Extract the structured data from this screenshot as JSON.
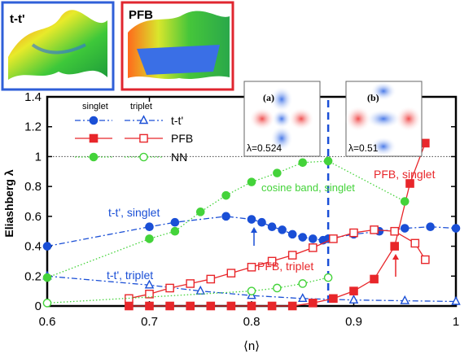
{
  "insets": {
    "ttp": {
      "label": "t-t'"
    },
    "pfb": {
      "label": "PFB"
    },
    "a": {
      "label": "(a)",
      "lambda_text": "λ=0.524"
    },
    "b": {
      "label": "(b)",
      "lambda_text": "λ=0.51"
    }
  },
  "legend": {
    "singlet_header": "singlet",
    "triplet_header": "triplet",
    "rows": [
      {
        "label": "t-t'",
        "series": [
          "ttp_singlet",
          "ttp_triplet"
        ]
      },
      {
        "label": "PFB",
        "series": [
          "pfb_singlet",
          "pfb_triplet"
        ]
      },
      {
        "label": "NN",
        "series": [
          "nn_singlet",
          "nn_triplet"
        ]
      }
    ]
  },
  "annotations": {
    "ttp_singlet": "t-t', singlet",
    "ttp_triplet": "t-t', triplet",
    "cosine_singlet": "cosine band, singlet",
    "pfb_singlet": "PFB, singlet",
    "pfb_triplet": "PFB, triplet"
  },
  "colors": {
    "blue": "#1a4fd6",
    "red": "#e8262a",
    "green": "#44d33a",
    "ttp_frame": "#2f5fd8",
    "pfb_frame": "#e0262f"
  },
  "chart_data": {
    "type": "line",
    "xlabel": "⟨n⟩",
    "ylabel": "Eliashberg λ",
    "xlim": [
      0.6,
      1.0
    ],
    "ylim": [
      0,
      1.4
    ],
    "xticks": [
      0.6,
      0.7,
      0.8,
      0.9,
      1.0
    ],
    "xtick_labels": [
      "0.6",
      "0.7",
      "0.8",
      "0.9",
      "1"
    ],
    "yticks": [
      0,
      0.2,
      0.4,
      0.6,
      0.8,
      1.0,
      1.2,
      1.4
    ],
    "ytick_labels": [
      "0",
      "0.2",
      "0.4",
      "0.6",
      "0.8",
      "1",
      "1.2",
      "1.4"
    ],
    "reference_line_y": 1.0,
    "vertical_marker_x": 0.875,
    "series": [
      {
        "id": "ttp_singlet",
        "color": "#1a4fd6",
        "marker": "circle",
        "filled": true,
        "dash": "dashdot",
        "x": [
          0.6,
          0.7,
          0.725,
          0.775,
          0.8,
          0.81,
          0.82,
          0.83,
          0.84,
          0.85,
          0.86,
          0.87,
          0.875,
          0.9,
          0.925,
          0.95,
          0.975,
          1.0
        ],
        "y": [
          0.4,
          0.53,
          0.56,
          0.6,
          0.58,
          0.56,
          0.53,
          0.51,
          0.48,
          0.46,
          0.45,
          0.44,
          0.45,
          0.48,
          0.5,
          0.52,
          0.53,
          0.52
        ]
      },
      {
        "id": "ttp_triplet",
        "color": "#1a4fd6",
        "marker": "triangle",
        "filled": false,
        "dash": "dashdot",
        "x": [
          0.6,
          0.7,
          0.75,
          0.8,
          0.85,
          0.9,
          0.95,
          1.0
        ],
        "y": [
          0.2,
          0.14,
          0.1,
          0.07,
          0.05,
          0.04,
          0.035,
          0.03
        ]
      },
      {
        "id": "pfb_singlet",
        "color": "#e8262a",
        "marker": "square",
        "filled": true,
        "dash": "solid",
        "x": [
          0.68,
          0.7,
          0.72,
          0.74,
          0.76,
          0.78,
          0.8,
          0.82,
          0.84,
          0.86,
          0.88,
          0.9,
          0.92,
          0.94,
          0.955,
          0.97
        ],
        "y": [
          0.0,
          0.0,
          0.0,
          0.0,
          0.0,
          0.0,
          0.0,
          0.0,
          0.0,
          0.02,
          0.05,
          0.1,
          0.18,
          0.4,
          0.82,
          1.09
        ]
      },
      {
        "id": "pfb_triplet",
        "color": "#e8262a",
        "marker": "square",
        "filled": false,
        "dash": "solid",
        "x": [
          0.68,
          0.7,
          0.72,
          0.74,
          0.76,
          0.78,
          0.8,
          0.82,
          0.84,
          0.86,
          0.88,
          0.9,
          0.92,
          0.94,
          0.96,
          0.97
        ],
        "y": [
          0.05,
          0.08,
          0.12,
          0.15,
          0.18,
          0.22,
          0.26,
          0.3,
          0.34,
          0.39,
          0.45,
          0.49,
          0.51,
          0.5,
          0.42,
          0.31
        ]
      },
      {
        "id": "nn_singlet",
        "color": "#44d33a",
        "marker": "circle",
        "filled": true,
        "dash": "dotted",
        "x": [
          0.6,
          0.7,
          0.725,
          0.75,
          0.775,
          0.8,
          0.825,
          0.85,
          0.875,
          0.95
        ],
        "y": [
          0.19,
          0.45,
          0.5,
          0.63,
          0.74,
          0.83,
          0.89,
          0.96,
          0.97,
          0.7
        ]
      },
      {
        "id": "nn_triplet",
        "color": "#44d33a",
        "marker": "circle",
        "filled": false,
        "dash": "dotted",
        "x": [
          0.6,
          0.8,
          0.825,
          0.85,
          0.875
        ],
        "y": [
          0.02,
          0.1,
          0.12,
          0.15,
          0.19
        ]
      }
    ]
  }
}
